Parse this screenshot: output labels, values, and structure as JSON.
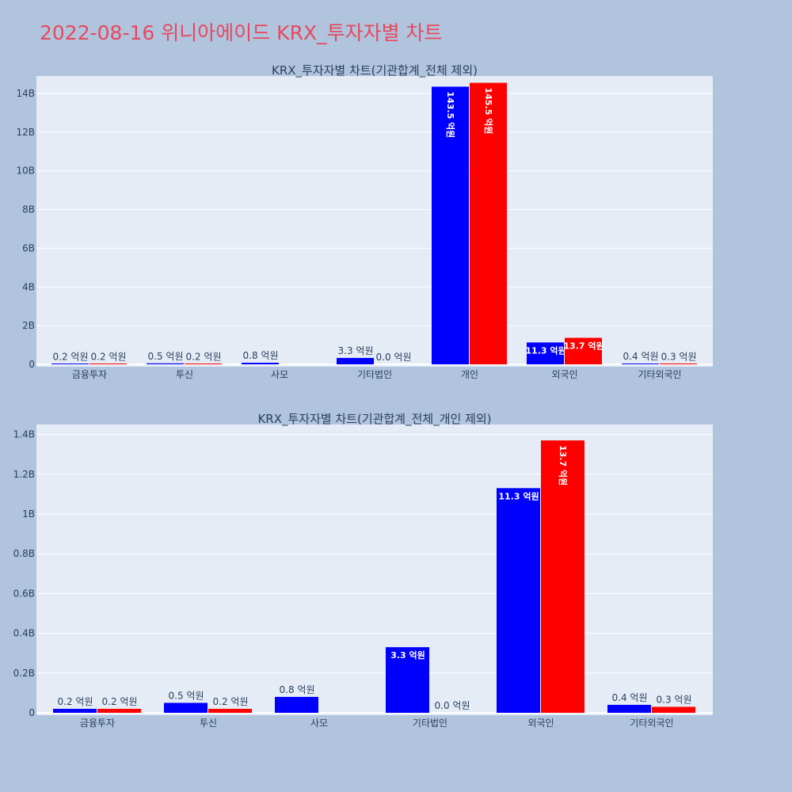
{
  "page_title": "2022-08-16 위니아에이드 KRX_투자자별 차트",
  "colors": {
    "series_a": "#0000ff",
    "series_b": "#ff0000",
    "plot_bg": "#e5ecf6",
    "page_bg": "#b0c4de",
    "title": "#e8485c"
  },
  "chart_data": [
    {
      "type": "bar",
      "title": "KRX_투자자별 차트(기관합계_전체 제외)",
      "categories": [
        "금융투자",
        "투신",
        "사모",
        "기타법인",
        "개인",
        "외국인",
        "기타외국인"
      ],
      "ylim": [
        0,
        14900000000
      ],
      "yticks": [
        0,
        2000000000,
        4000000000,
        6000000000,
        8000000000,
        10000000000,
        12000000000,
        14000000000
      ],
      "ytick_labels": [
        "0",
        "2B",
        "4B",
        "6B",
        "8B",
        "10B",
        "12B",
        "14B"
      ],
      "grid": true,
      "series": [
        {
          "values": [
            20000000,
            50000000,
            80000000,
            330000000,
            14350000000,
            1130000000,
            40000000
          ],
          "labels": [
            "0.2 억원",
            "0.5 억원",
            "0.8 억원",
            "3.3 억원",
            "143.5 억원",
            "11.3 억원",
            "0.4 억원"
          ]
        },
        {
          "values": [
            20000000,
            20000000,
            0,
            0,
            14550000000,
            1370000000,
            30000000
          ],
          "labels": [
            "0.2 억원",
            "0.2 억원",
            "",
            "0.0 억원",
            "145.5 억원",
            "13.7 억원",
            "0.3 억원"
          ]
        }
      ]
    },
    {
      "type": "bar",
      "title": "KRX_투자자별 차트(기관합계_전체_개인 제외)",
      "categories": [
        "금융투자",
        "투신",
        "사모",
        "기타법인",
        "외국인",
        "기타외국인"
      ],
      "ylim": [
        0,
        1450000000
      ],
      "yticks": [
        0,
        200000000,
        400000000,
        600000000,
        800000000,
        1000000000,
        1200000000,
        1400000000
      ],
      "ytick_labels": [
        "0",
        "0.2B",
        "0.4B",
        "0.6B",
        "0.8B",
        "1B",
        "1.2B",
        "1.4B"
      ],
      "grid": true,
      "series": [
        {
          "values": [
            20000000,
            50000000,
            80000000,
            330000000,
            1130000000,
            40000000
          ],
          "labels": [
            "0.2 억원",
            "0.5 억원",
            "0.8 억원",
            "3.3 억원",
            "11.3 억원",
            "0.4 억원"
          ]
        },
        {
          "values": [
            20000000,
            20000000,
            0,
            0,
            1370000000,
            30000000
          ],
          "labels": [
            "0.2 억원",
            "0.2 억원",
            "",
            "0.0 억원",
            "13.7 억원",
            "0.3 억원"
          ]
        }
      ]
    }
  ]
}
